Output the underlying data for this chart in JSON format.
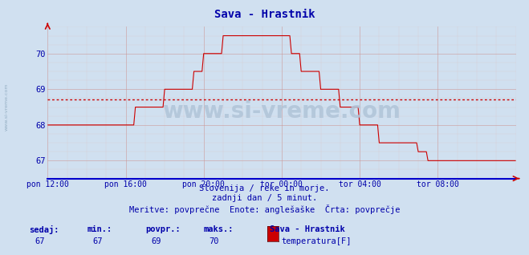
{
  "title": "Sava - Hrastnik",
  "bg_color": "#d0e0f0",
  "plot_bg_color": "#d0e0f0",
  "line_color": "#cc0000",
  "avg_line_color": "#cc0000",
  "axis_color": "#0000cc",
  "grid_major_color": "#cc9999",
  "grid_minor_color": "#ddbbbb",
  "text_color": "#0000aa",
  "ylim": [
    66.5,
    70.75
  ],
  "yticks": [
    67,
    68,
    69,
    70
  ],
  "xlim_max": 288,
  "xtick_positions": [
    0,
    48,
    96,
    144,
    192,
    240
  ],
  "xlabel_times": [
    "pon 12:00",
    "pon 16:00",
    "pon 20:00",
    "tor 00:00",
    "tor 04:00",
    "tor 08:00"
  ],
  "avg_value": 68.72,
  "subtitle1": "Slovenija / reke in morje.",
  "subtitle2": "zadnji dan / 5 minut.",
  "subtitle3": "Meritve: povprečne  Enote: anglešaške  Črta: povprečje",
  "footer_labels": [
    "sedaj:",
    "min.:",
    "povpr.:",
    "maks.:"
  ],
  "footer_values": [
    "67",
    "67",
    "69",
    "70"
  ],
  "footer_station": "Sava - Hrastnik",
  "footer_series": "temperatura[F]",
  "watermark": "www.si-vreme.com",
  "watermark_color": "#b0c4d8",
  "left_label": "www.si-vreme.com"
}
